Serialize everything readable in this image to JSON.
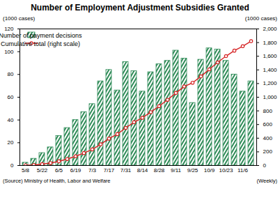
{
  "chart_data": {
    "type": "bar",
    "title": "Number of Employment Adjustment Subsidies Granted",
    "y_label": "(1000 cases)",
    "y2_label": "(1000 cases)",
    "x_label": "(Weekly)",
    "source": "(Source) Ministry of Health, Labor and Welfare",
    "categories": [
      "5/8",
      null,
      "5/22",
      null,
      "6/5",
      null,
      "6/19",
      null,
      "7/3",
      null,
      "7/17",
      null,
      "7/31",
      null,
      "8/14",
      null,
      "8/28",
      null,
      "9/11",
      null,
      "9/25",
      null,
      "10/9",
      null,
      "10/23",
      null,
      "11/6",
      null
    ],
    "series": [
      {
        "name": "Number of payment decisions",
        "type": "bar",
        "color": "#2e8b57",
        "values": [
          2.5,
          6,
          11,
          16,
          26,
          33,
          40,
          47,
          54,
          74,
          84,
          66,
          91,
          83,
          65,
          82,
          89,
          92,
          101,
          94,
          55,
          93,
          103,
          102,
          92,
          80,
          65,
          74
        ]
      },
      {
        "name": "Cumulative total (right scale)",
        "type": "line",
        "axis": "y2",
        "color": "#d62728",
        "marker": "circle",
        "line_style": "solid",
        "values": [
          3,
          8,
          20,
          36,
          62,
          95,
          135,
          182,
          236,
          310,
          394,
          460,
          551,
          634,
          699,
          781,
          870,
          962,
          1063,
          1157,
          1212,
          1305,
          1408,
          1510,
          1602,
          1682,
          1747,
          1821
        ]
      }
    ],
    "ylim": [
      0,
      120
    ],
    "yticks": [
      0,
      20,
      40,
      60,
      80,
      100,
      120
    ],
    "y2lim": [
      0,
      2000
    ],
    "y2ticks": [
      0,
      200,
      400,
      600,
      800,
      {
        "value": 1000,
        "label": "1,000"
      },
      {
        "value": 1200,
        "label": "1,200"
      },
      {
        "value": 1400,
        "label": "1,400"
      },
      {
        "value": 1600,
        "label": "1,600"
      },
      {
        "value": 1800,
        "label": "1,800"
      },
      {
        "value": 2000,
        "label": "2,000"
      }
    ],
    "legend": "upper left",
    "grid": false
  }
}
